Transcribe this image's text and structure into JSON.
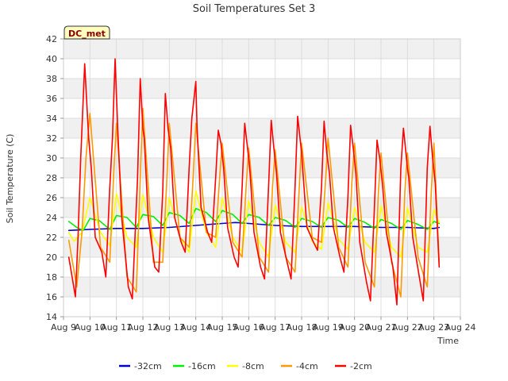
{
  "chart_data": {
    "type": "line",
    "title": "Soil Temperatures Set 3",
    "xlabel": "Time",
    "ylabel": "Soil Temperature (C)",
    "station_badge": "DC_met",
    "xlim": [
      9,
      24
    ],
    "ylim": [
      14,
      42
    ],
    "yticks": [
      14,
      16,
      18,
      20,
      22,
      24,
      26,
      28,
      30,
      32,
      34,
      36,
      38,
      40,
      42
    ],
    "xticks": [
      {
        "day": 9,
        "label": "Aug 9"
      },
      {
        "day": 10,
        "label": "Aug 10"
      },
      {
        "day": 11,
        "label": "Aug 11"
      },
      {
        "day": 12,
        "label": "Aug 12"
      },
      {
        "day": 13,
        "label": "Aug 13"
      },
      {
        "day": 14,
        "label": "Aug 14"
      },
      {
        "day": 15,
        "label": "Aug 15"
      },
      {
        "day": 16,
        "label": "Aug 16"
      },
      {
        "day": 17,
        "label": "Aug 17"
      },
      {
        "day": 18,
        "label": "Aug 18"
      },
      {
        "day": 19,
        "label": "Aug 19"
      },
      {
        "day": 20,
        "label": "Aug 20"
      },
      {
        "day": 21,
        "label": "Aug 21"
      },
      {
        "day": 22,
        "label": "Aug 22"
      },
      {
        "day": 23,
        "label": "Aug 23"
      },
      {
        "day": 24,
        "label": "Aug 24"
      }
    ],
    "grid": true,
    "legend_position": "bottom",
    "series": [
      {
        "name": "-32cm",
        "color": "#0000cc",
        "x": [
          9.2,
          10.0,
          11.0,
          12.0,
          13.0,
          14.0,
          15.0,
          15.5,
          16.0,
          17.0,
          18.0,
          19.0,
          20.0,
          21.0,
          22.0,
          23.0,
          23.2
        ],
        "y": [
          22.7,
          22.8,
          22.9,
          22.9,
          23.0,
          23.2,
          23.4,
          23.5,
          23.4,
          23.2,
          23.1,
          23.1,
          23.1,
          23.0,
          23.0,
          22.9,
          23.0
        ]
      },
      {
        "name": "-16cm",
        "color": "#00ee00",
        "x": [
          9.2,
          9.5,
          9.75,
          10.0,
          10.35,
          10.75,
          11.0,
          11.4,
          11.75,
          12.0,
          12.4,
          12.75,
          13.0,
          13.4,
          13.75,
          14.0,
          14.4,
          14.75,
          15.0,
          15.4,
          15.75,
          16.0,
          16.4,
          16.75,
          17.0,
          17.4,
          17.75,
          18.0,
          18.4,
          18.75,
          19.0,
          19.4,
          19.75,
          20.0,
          20.4,
          20.75,
          21.0,
          21.4,
          21.75,
          22.0,
          22.4,
          22.75,
          23.0,
          23.2
        ],
        "y": [
          23.6,
          23.0,
          22.7,
          23.9,
          23.7,
          22.8,
          24.2,
          24.0,
          23.0,
          24.3,
          24.1,
          23.2,
          24.5,
          24.2,
          23.4,
          24.9,
          24.5,
          23.6,
          24.7,
          24.3,
          23.4,
          24.3,
          24.0,
          23.2,
          24.0,
          23.7,
          23.0,
          23.9,
          23.6,
          23.0,
          24.0,
          23.7,
          23.0,
          23.9,
          23.5,
          22.9,
          23.8,
          23.4,
          22.8,
          23.7,
          23.3,
          22.8,
          23.6,
          23.4
        ]
      },
      {
        "name": "-8cm",
        "color": "#ffff00",
        "x": [
          9.2,
          9.4,
          9.7,
          10.0,
          10.4,
          10.75,
          11.0,
          11.4,
          11.75,
          12.0,
          12.4,
          12.75,
          13.0,
          13.4,
          13.75,
          14.0,
          14.4,
          14.75,
          15.0,
          15.4,
          15.75,
          16.0,
          16.4,
          16.75,
          17.0,
          17.4,
          17.75,
          18.0,
          18.4,
          18.75,
          19.0,
          19.4,
          19.75,
          20.0,
          20.4,
          20.75,
          21.0,
          21.4,
          21.75,
          22.0,
          22.4,
          22.75,
          23.0,
          23.2
        ],
        "y": [
          22.5,
          21.6,
          22.5,
          26.0,
          22.5,
          21.2,
          26.4,
          22.0,
          21.0,
          26.3,
          22.0,
          20.5,
          26.0,
          22.0,
          20.5,
          26.7,
          22.5,
          21.0,
          26.0,
          22.0,
          20.5,
          25.7,
          21.5,
          20.0,
          25.3,
          21.5,
          20.5,
          25.1,
          21.6,
          20.8,
          25.5,
          21.8,
          20.8,
          25.0,
          21.5,
          20.5,
          25.2,
          21.0,
          20.0,
          25.0,
          21.0,
          20.5,
          24.8,
          23.5
        ]
      },
      {
        "name": "-4cm",
        "color": "#ff9900",
        "x": [
          9.2,
          9.5,
          9.7,
          9.85,
          10.0,
          10.4,
          10.75,
          10.9,
          11.0,
          11.4,
          11.75,
          11.9,
          12.0,
          12.4,
          12.75,
          12.9,
          13.0,
          13.4,
          13.75,
          13.9,
          14.0,
          14.4,
          14.75,
          14.9,
          15.0,
          15.4,
          15.75,
          15.9,
          16.0,
          16.4,
          16.75,
          16.9,
          17.0,
          17.4,
          17.75,
          17.9,
          18.0,
          18.4,
          18.75,
          18.9,
          19.0,
          19.4,
          19.75,
          19.9,
          20.0,
          20.4,
          20.75,
          20.9,
          21.0,
          21.4,
          21.75,
          21.9,
          22.0,
          22.4,
          22.75,
          22.9,
          23.0,
          23.2
        ],
        "y": [
          21.7,
          17.0,
          22.5,
          30.0,
          34.5,
          21.0,
          19.5,
          28.5,
          33.5,
          18.0,
          16.5,
          28.0,
          35.0,
          19.5,
          19.5,
          27.5,
          33.5,
          22.0,
          21.0,
          28.0,
          33.5,
          22.5,
          22.0,
          28.0,
          31.5,
          21.5,
          20.0,
          27.0,
          31.0,
          20.0,
          18.5,
          27.0,
          30.8,
          20.0,
          18.5,
          26.5,
          31.5,
          22.0,
          21.5,
          27.5,
          32.0,
          21.0,
          19.0,
          27.5,
          31.5,
          19.5,
          17.0,
          26.5,
          30.5,
          19.5,
          16.0,
          26.5,
          30.5,
          20.0,
          17.0,
          26.5,
          31.5,
          19.5
        ]
      },
      {
        "name": "-2cm",
        "color": "#ff0000",
        "x": [
          9.2,
          9.45,
          9.55,
          9.65,
          9.8,
          9.95,
          10.05,
          10.2,
          10.45,
          10.6,
          10.75,
          10.85,
          10.95,
          11.05,
          11.2,
          11.45,
          11.6,
          11.8,
          11.9,
          12.0,
          12.05,
          12.2,
          12.45,
          12.6,
          12.75,
          12.85,
          12.95,
          13.05,
          13.2,
          13.45,
          13.6,
          13.75,
          13.85,
          14.0,
          14.05,
          14.2,
          14.45,
          14.6,
          14.75,
          14.85,
          14.95,
          15.05,
          15.2,
          15.45,
          15.6,
          15.75,
          15.85,
          16.0,
          16.05,
          16.2,
          16.45,
          16.6,
          16.75,
          16.85,
          16.95,
          17.05,
          17.2,
          17.45,
          17.6,
          17.75,
          17.85,
          18.0,
          18.05,
          18.2,
          18.45,
          18.6,
          18.75,
          18.85,
          18.95,
          19.05,
          19.2,
          19.45,
          19.6,
          19.75,
          19.85,
          19.95,
          20.05,
          20.2,
          20.45,
          20.6,
          20.75,
          20.85,
          20.95,
          21.05,
          21.2,
          21.45,
          21.6,
          21.75,
          21.85,
          22.0,
          22.05,
          22.2,
          22.45,
          22.6,
          22.75,
          22.85,
          22.95,
          23.05,
          23.2
        ],
        "y": [
          20.0,
          16.0,
          22.0,
          30.0,
          39.5,
          32.0,
          29.0,
          22.0,
          20.5,
          18.0,
          27.0,
          32.0,
          40.0,
          33.0,
          24.0,
          17.0,
          15.8,
          28.0,
          38.0,
          33.0,
          32.0,
          24.0,
          19.0,
          18.5,
          26.5,
          36.5,
          33.0,
          31.0,
          24.0,
          21.5,
          20.5,
          29.0,
          34.0,
          37.7,
          33.0,
          25.0,
          22.5,
          21.5,
          28.0,
          32.8,
          31.5,
          29.0,
          23.0,
          20.0,
          19.0,
          27.0,
          33.5,
          30.0,
          28.5,
          22.5,
          19.0,
          17.8,
          27.0,
          33.8,
          31.0,
          28.5,
          22.5,
          19.5,
          17.8,
          27.0,
          34.2,
          30.5,
          28.5,
          23.0,
          21.5,
          20.7,
          27.0,
          33.7,
          30.5,
          28.5,
          23.0,
          20.0,
          18.5,
          26.0,
          33.3,
          31.0,
          28.5,
          21.5,
          17.5,
          15.6,
          25.0,
          31.8,
          30.0,
          27.5,
          22.5,
          19.0,
          15.2,
          29.0,
          33.0,
          29.0,
          28.0,
          22.0,
          18.0,
          15.6,
          29.0,
          33.2,
          30.0,
          27.5,
          19.0
        ]
      }
    ]
  }
}
